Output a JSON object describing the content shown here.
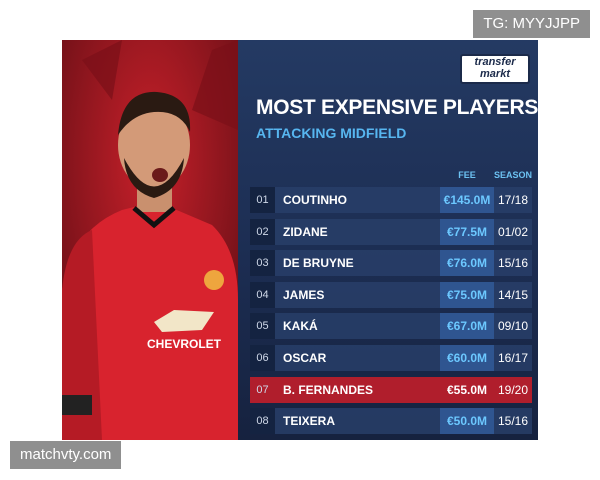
{
  "watermarks": {
    "top": "TG: MYYJJPP",
    "bottom": "matchvty.com"
  },
  "logo": {
    "line1": "transfer",
    "line2": "markt"
  },
  "photo": {
    "shirt_sponsor": "CHEVROLET"
  },
  "header": {
    "title": "MOST EXPENSIVE PLAYERS",
    "subtitle": "ATTACKING MIDFIELD"
  },
  "table": {
    "columns": [
      "FEE",
      "SEASON"
    ],
    "rows": [
      [
        "01",
        "COUTINHO",
        "€145.0M",
        "17/18"
      ],
      [
        "02",
        "ZIDANE",
        "€77.5M",
        "01/02"
      ],
      [
        "03",
        "DE BRUYNE",
        "€76.0M",
        "15/16"
      ],
      [
        "04",
        "JAMES",
        "€75.0M",
        "14/15"
      ],
      [
        "05",
        "KAKÁ",
        "€67.0M",
        "09/10"
      ],
      [
        "06",
        "OSCAR",
        "€60.0M",
        "16/17"
      ],
      [
        "07",
        "B. FERNANDES",
        "€55.0M",
        "19/20"
      ],
      [
        "08",
        "TEIXERA",
        "€50.0M",
        "15/16"
      ]
    ]
  }
}
